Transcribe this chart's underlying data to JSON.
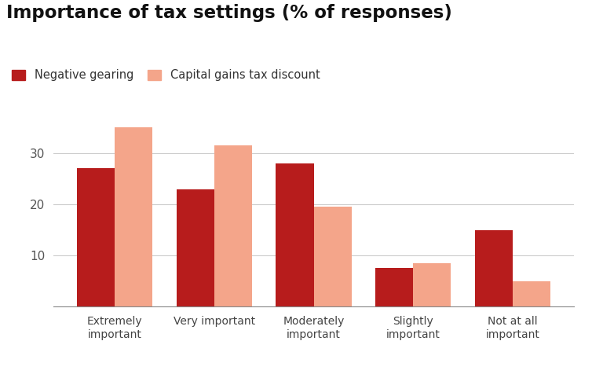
{
  "title": "Importance of tax settings (% of responses)",
  "categories": [
    "Extremely\nimportant",
    "Very important",
    "Moderately\nimportant",
    "Slightly\nimportant",
    "Not at all\nimportant"
  ],
  "negative_gearing": [
    27,
    23,
    28,
    7.5,
    15
  ],
  "capital_gains": [
    35,
    31.5,
    19.5,
    8.5,
    5
  ],
  "color_negative": "#b71c1c",
  "color_capital": "#f4a58a",
  "legend_labels": [
    "Negative gearing",
    "Capital gains tax discount"
  ],
  "ylim": [
    0,
    38
  ],
  "yticks": [
    10,
    20,
    30
  ],
  "bar_width": 0.38,
  "background_color": "#ffffff"
}
